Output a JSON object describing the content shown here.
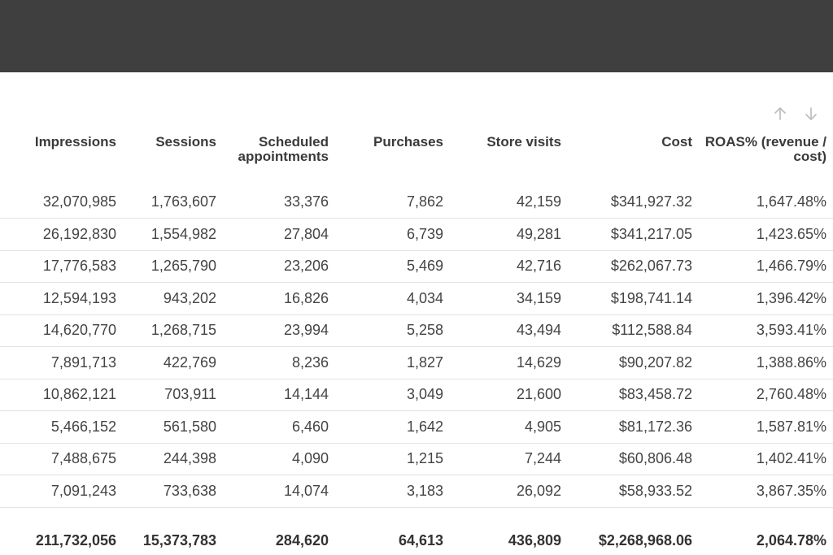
{
  "table": {
    "headers": [
      "Impressions",
      "Sessions",
      "Scheduled appointments",
      "Purchases",
      "Store visits",
      "Cost",
      "ROAS% (revenue / cost)"
    ],
    "rows": [
      [
        "32,070,985",
        "1,763,607",
        "33,376",
        "7,862",
        "42,159",
        "$341,927.32",
        "1,647.48%"
      ],
      [
        "26,192,830",
        "1,554,982",
        "27,804",
        "6,739",
        "49,281",
        "$341,217.05",
        "1,423.65%"
      ],
      [
        "17,776,583",
        "1,265,790",
        "23,206",
        "5,469",
        "42,716",
        "$262,067.73",
        "1,466.79%"
      ],
      [
        "12,594,193",
        "943,202",
        "16,826",
        "4,034",
        "34,159",
        "$198,741.14",
        "1,396.42%"
      ],
      [
        "14,620,770",
        "1,268,715",
        "23,994",
        "5,258",
        "43,494",
        "$112,588.84",
        "3,593.41%"
      ],
      [
        "7,891,713",
        "422,769",
        "8,236",
        "1,827",
        "14,629",
        "$90,207.82",
        "1,388.86%"
      ],
      [
        "10,862,121",
        "703,911",
        "14,144",
        "3,049",
        "21,600",
        "$83,458.72",
        "2,760.48%"
      ],
      [
        "5,466,152",
        "561,580",
        "6,460",
        "1,642",
        "4,905",
        "$81,172.36",
        "1,587.81%"
      ],
      [
        "7,488,675",
        "244,398",
        "4,090",
        "1,215",
        "7,244",
        "$60,806.48",
        "1,402.41%"
      ],
      [
        "7,091,243",
        "733,638",
        "14,074",
        "3,183",
        "26,092",
        "$58,933.52",
        "3,867.35%"
      ]
    ],
    "totals": [
      "211,732,056",
      "15,373,783",
      "284,620",
      "64,613",
      "436,809",
      "$2,268,968.06",
      "2,064.78%"
    ]
  }
}
